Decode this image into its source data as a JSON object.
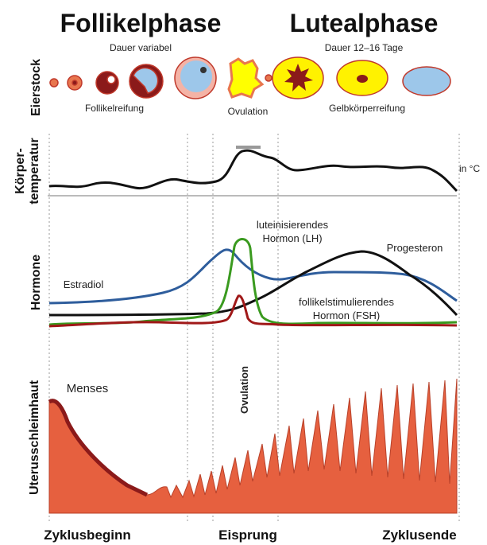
{
  "header": {
    "follicular": "Follikelphase",
    "luteal": "Lutealphase",
    "follicular_duration": "Dauer variabel",
    "luteal_duration": "Dauer 12–16 Tage"
  },
  "ovary": {
    "label": "Eierstock",
    "stages": [
      "Follikelreifung",
      "Ovulation",
      "Gelbkörperreifung"
    ]
  },
  "temperature": {
    "label_lines": [
      "Körper-",
      "temperatur"
    ],
    "unit": "in °C"
  },
  "hormones": {
    "label": "Hormone",
    "lh_lines": [
      "luteinisierendes",
      "Hormon (LH)"
    ],
    "progesterone": "Progesteron",
    "estradiol": "Estradiol",
    "fsh_lines": [
      "follikelstimulierendes",
      "Hormon (FSH)"
    ]
  },
  "uterus": {
    "label": "Uterusschleimhaut",
    "menses": "Menses",
    "ovulation": "Ovulation"
  },
  "timeline": [
    "Zyklusbeginn",
    "Eisprung",
    "Zyklusende"
  ]
}
